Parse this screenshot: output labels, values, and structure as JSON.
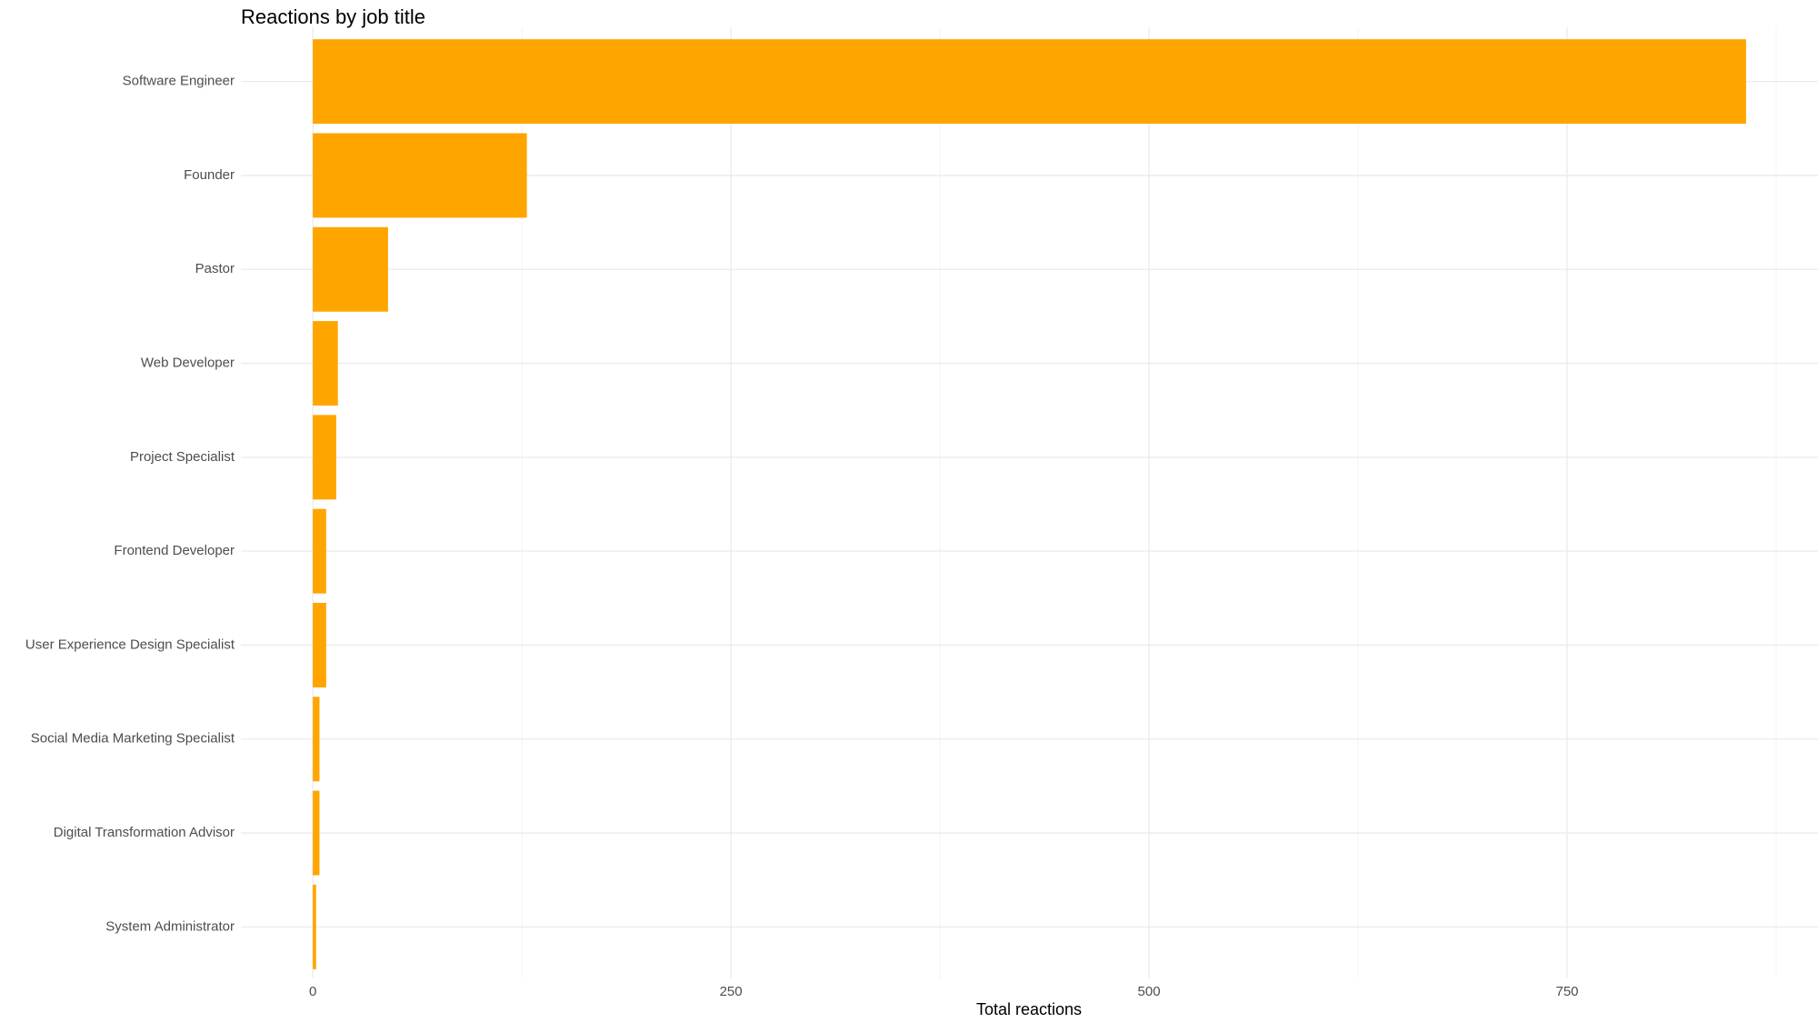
{
  "chart_data": {
    "type": "hbar",
    "title": "Reactions by job title",
    "x_label": "Total reactions",
    "categories": [
      "Software Engineer",
      "Founder",
      "Pastor",
      "Web Developer",
      "Project Specialist",
      "Frontend Developer",
      "User Experience Design Specialist",
      "Social Media Marketing Specialist",
      "Digital Transformation Advisor",
      "System Administrator"
    ],
    "values": [
      857,
      128,
      45,
      15,
      14,
      8,
      8,
      4,
      4,
      2
    ],
    "color": "#ffa500",
    "xlim": [
      -43,
      900
    ],
    "xticks": [
      0,
      250,
      500,
      750
    ],
    "grid": true
  }
}
